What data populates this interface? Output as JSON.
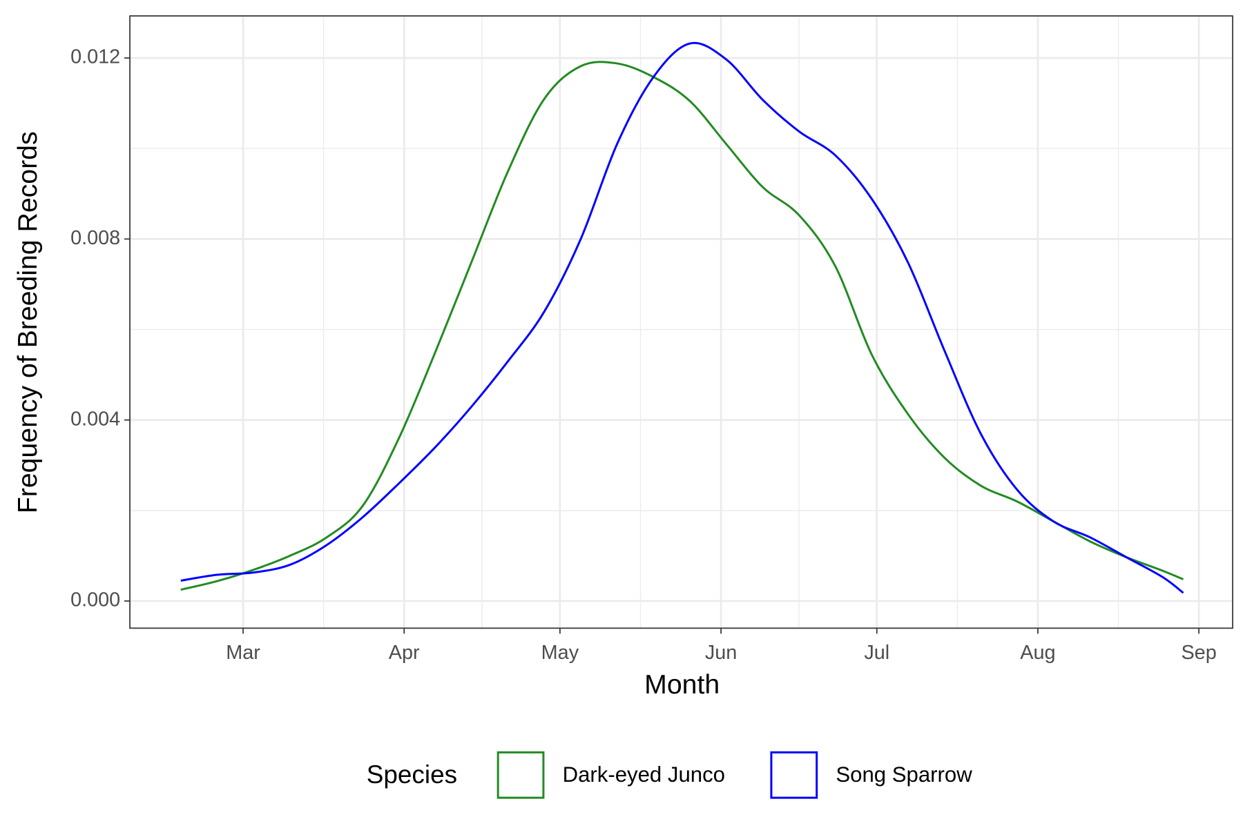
{
  "chart_data": {
    "type": "line",
    "x_label": "Month",
    "y_label": "Frequency of Breeding Records",
    "legend_title": "Species",
    "legend_position": "bottom",
    "grid": true,
    "minor_grid": true,
    "xlim": [
      38.2,
      250.5
    ],
    "xticks": [
      {
        "value": 60,
        "label": "Mar"
      },
      {
        "value": 91,
        "label": "Apr"
      },
      {
        "value": 121,
        "label": "May"
      },
      {
        "value": 152,
        "label": "Jun"
      },
      {
        "value": 182,
        "label": "Jul"
      },
      {
        "value": 213,
        "label": "Aug"
      },
      {
        "value": 244,
        "label": "Sep"
      }
    ],
    "ylim": [
      -0.0006,
      0.01293
    ],
    "yticks": [
      {
        "value": 0,
        "label": "0.000"
      },
      {
        "value": 0.004,
        "label": "0.004"
      },
      {
        "value": 0.008,
        "label": "0.008"
      },
      {
        "value": 0.012,
        "label": "0.012"
      }
    ],
    "x": [
      48,
      55,
      62,
      69,
      76,
      83,
      90,
      97,
      104,
      111,
      118,
      125,
      132,
      139,
      146,
      153,
      160,
      167,
      174,
      181,
      188,
      195,
      202,
      209,
      216,
      223,
      230,
      237,
      241
    ],
    "series": [
      {
        "name": "Dark-eyed Junco",
        "color": "#228b22",
        "values": [
          0.00025,
          0.00044,
          0.00069,
          0.001,
          0.0014,
          0.0021,
          0.0036,
          0.0055,
          0.0075,
          0.0095,
          0.0111,
          0.01182,
          0.01188,
          0.01158,
          0.01105,
          0.0101,
          0.00915,
          0.00853,
          0.0074,
          0.00545,
          0.00413,
          0.00317,
          0.00255,
          0.0022,
          0.00176,
          0.00132,
          0.00097,
          0.00067,
          0.00048
        ]
      },
      {
        "name": "Song Sparrow",
        "color": "#0000ff",
        "values": [
          0.00045,
          0.00058,
          0.00063,
          0.0008,
          0.00123,
          0.00185,
          0.0026,
          0.0034,
          0.0043,
          0.0053,
          0.0064,
          0.008,
          0.0101,
          0.01158,
          0.01232,
          0.01197,
          0.01108,
          0.01038,
          0.00985,
          0.00889,
          0.00748,
          0.00554,
          0.0037,
          0.00246,
          0.00176,
          0.00141,
          0.00097,
          0.00053,
          0.00018
        ]
      }
    ]
  }
}
